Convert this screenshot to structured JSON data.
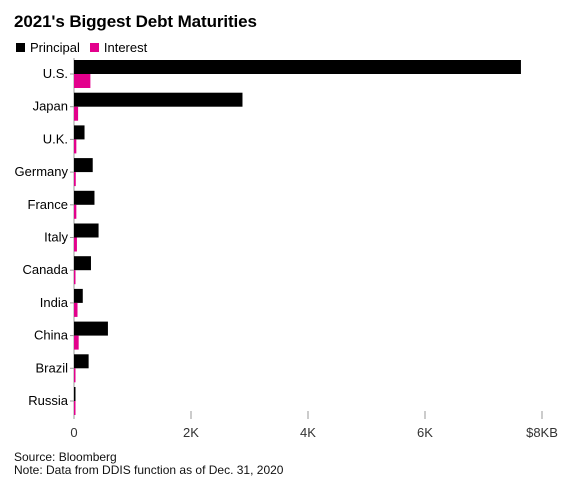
{
  "title": "2021's Biggest Debt Maturities",
  "footer": {
    "source": "Source: Bloomberg",
    "note": "Note: Data from DDIS function as of Dec. 31, 2020"
  },
  "chart_data": {
    "type": "bar",
    "orientation": "horizontal",
    "title": "2021's Biggest Debt Maturities",
    "categories": [
      "U.S.",
      "Japan",
      "U.K.",
      "Germany",
      "France",
      "Italy",
      "Canada",
      "India",
      "China",
      "Brazil",
      "Russia"
    ],
    "series": [
      {
        "name": "Principal",
        "color": "#000000",
        "values": [
          7640,
          2880,
          180,
          320,
          350,
          420,
          290,
          150,
          580,
          250,
          20
        ]
      },
      {
        "name": "Interest",
        "color": "#e3008c",
        "values": [
          280,
          70,
          40,
          30,
          40,
          50,
          20,
          60,
          80,
          25,
          15
        ]
      }
    ],
    "x_ticks": [
      {
        "value": 0,
        "label": "0"
      },
      {
        "value": 2000,
        "label": "2K"
      },
      {
        "value": 4000,
        "label": "4K"
      },
      {
        "value": 6000,
        "label": "6K"
      },
      {
        "value": 8000,
        "label": "$8KB"
      }
    ],
    "xlim": [
      0,
      8000
    ],
    "legend_position": "top-left",
    "grid": false
  }
}
